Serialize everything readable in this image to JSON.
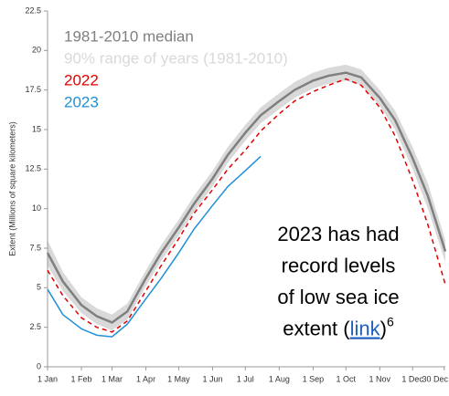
{
  "chart_data": {
    "type": "line",
    "y_label": "Extent (Millions of square kilometers)",
    "x": [
      1,
      15,
      32,
      46,
      60,
      74,
      91,
      105,
      121,
      135,
      152,
      166,
      182,
      196,
      213,
      227,
      244,
      258,
      274,
      288,
      305,
      319,
      335,
      349,
      365
    ],
    "xlim": [
      1,
      365
    ],
    "xticks": [
      {
        "value": 1,
        "label": "1 Jan"
      },
      {
        "value": 32,
        "label": "1 Feb"
      },
      {
        "value": 60,
        "label": "1 Mar"
      },
      {
        "value": 91,
        "label": "1 Apr"
      },
      {
        "value": 121,
        "label": "1 May"
      },
      {
        "value": 152,
        "label": "1 Jun"
      },
      {
        "value": 182,
        "label": "1 Jul"
      },
      {
        "value": 213,
        "label": "1 Aug"
      },
      {
        "value": 244,
        "label": "1 Sep"
      },
      {
        "value": 274,
        "label": "1 Oct"
      },
      {
        "value": 305,
        "label": "1 Nov"
      },
      {
        "value": 335,
        "label": "1 Dec"
      },
      {
        "value": 364,
        "label": "30 Dec"
      }
    ],
    "ylim": [
      0,
      22.5
    ],
    "yticks": [
      0,
      2.5,
      5,
      7.5,
      10,
      12.5,
      15,
      17.5,
      20,
      22.5
    ],
    "range": {
      "name": "90% range of years (1981-2010)",
      "color": "#d9d9d9",
      "lower": [
        6.4,
        4.8,
        3.4,
        2.7,
        2.3,
        3.0,
        5.1,
        6.7,
        8.3,
        9.8,
        11.4,
        12.9,
        14.3,
        15.4,
        16.3,
        17.0,
        17.6,
        17.9,
        18.1,
        17.8,
        16.5,
        15.0,
        12.5,
        10.0,
        6.6
      ],
      "upper": [
        8.0,
        6.0,
        4.4,
        3.7,
        3.3,
        4.0,
        6.1,
        7.7,
        9.3,
        10.8,
        12.4,
        13.9,
        15.3,
        16.4,
        17.3,
        18.0,
        18.6,
        18.9,
        19.1,
        18.8,
        17.5,
        16.2,
        13.9,
        11.6,
        8.0
      ]
    },
    "series": [
      {
        "name": "1981-2010 median",
        "color": "#7f7f7f",
        "dash": false,
        "values": [
          7.2,
          5.4,
          3.9,
          3.2,
          2.8,
          3.5,
          5.6,
          7.2,
          8.8,
          10.3,
          11.9,
          13.4,
          14.8,
          15.9,
          16.8,
          17.5,
          18.1,
          18.4,
          18.6,
          18.3,
          17.0,
          15.6,
          13.2,
          10.8,
          7.3
        ]
      },
      {
        "name": "2022",
        "color": "#e00000",
        "dash": true,
        "values": [
          6.1,
          4.5,
          3.1,
          2.5,
          2.2,
          2.9,
          4.8,
          6.4,
          8.1,
          9.7,
          11.2,
          12.5,
          13.7,
          14.9,
          16.0,
          16.8,
          17.4,
          17.8,
          18.2,
          17.8,
          16.4,
          14.6,
          11.8,
          9.0,
          5.2
        ]
      },
      {
        "name": "2023",
        "color": "#1f8fd6",
        "dash": false,
        "values": [
          4.9,
          3.3,
          2.4,
          2.0,
          1.9,
          2.7,
          4.3,
          5.6,
          7.2,
          8.7,
          10.2,
          11.4,
          12.4,
          13.3,
          null,
          null,
          null,
          null,
          null,
          null,
          null,
          null,
          null,
          null,
          null
        ]
      }
    ],
    "annotation": {
      "lines": [
        "2023 has had",
        "record levels",
        "of low sea ice"
      ],
      "last_start": "extent (",
      "link": "link",
      "last_end": ")",
      "footnote": "6"
    }
  }
}
